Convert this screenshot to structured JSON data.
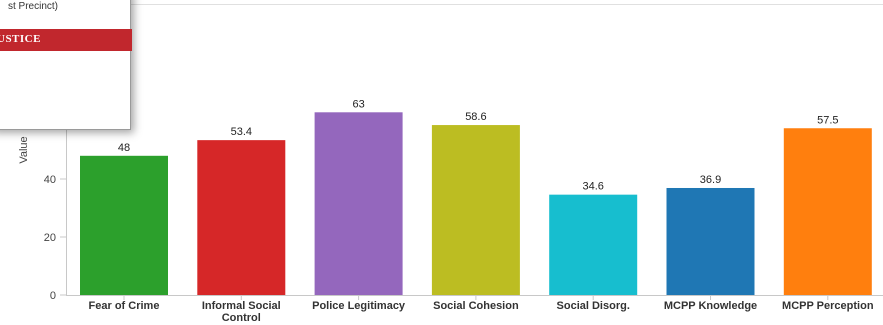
{
  "popup": {
    "subtitle": "st Precinct)",
    "banner": "USTICE",
    "banner_color": "#c1272d"
  },
  "chart_data": {
    "type": "bar",
    "ylabel": "Value",
    "ylim": [
      0,
      70
    ],
    "yticks": [
      0,
      20,
      40
    ],
    "grid": false,
    "categories": [
      "Fear of Crime",
      "Informal Social Control",
      "Police Legitimacy",
      "Social Cohesion",
      "Social Disorg.",
      "MCPP Knowledge",
      "MCPP Perception"
    ],
    "category_lines": [
      [
        "Fear of Crime"
      ],
      [
        "Informal Social",
        "Control"
      ],
      [
        "Police Legitimacy"
      ],
      [
        "Social Cohesion"
      ],
      [
        "Social Disorg."
      ],
      [
        "MCPP Knowledge"
      ],
      [
        "MCPP Perception"
      ]
    ],
    "values": [
      48,
      53.4,
      63,
      58.6,
      34.6,
      36.9,
      57.5
    ],
    "value_labels": [
      "48",
      "53.4",
      "63",
      "58.6",
      "34.6",
      "36.9",
      "57.5"
    ],
    "colors": [
      "#2ca02c",
      "#d62728",
      "#9467bd",
      "#bcbd22",
      "#17becf",
      "#1f77b4",
      "#ff7f0e"
    ]
  }
}
